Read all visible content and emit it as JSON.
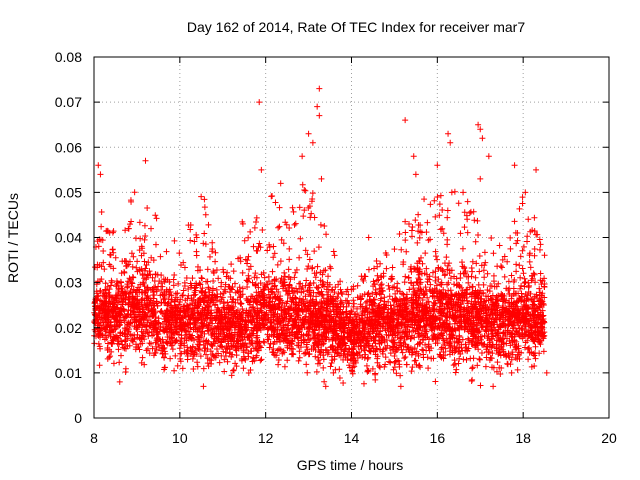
{
  "chart_data": {
    "type": "scatter",
    "title": "Day 162 of 2014, Rate Of TEC Index for receiver mar7",
    "xlabel": "GPS time / hours",
    "ylabel": "ROTI / TECUs",
    "xlim": [
      8,
      20
    ],
    "ylim": [
      0,
      0.08
    ],
    "grid": true,
    "marker": "+",
    "xticks": [
      8,
      10,
      12,
      14,
      16,
      18,
      20
    ],
    "xtick_labels": [
      "8",
      "10",
      "12",
      "14",
      "16",
      "18",
      "20"
    ],
    "yticks": [
      0,
      0.01,
      0.02,
      0.03,
      0.04,
      0.05,
      0.06,
      0.07,
      0.08
    ],
    "ytick_labels": [
      "0",
      "0.01",
      "0.02",
      "0.03",
      "0.04",
      "0.05",
      "0.06",
      "0.07",
      "0.08"
    ],
    "series_color": "#ff0000",
    "data_range": {
      "x_start": 8.0,
      "x_end": 18.5
    },
    "envelope": [
      {
        "x": 8.0,
        "median": 0.022,
        "low": 0.014,
        "high": 0.05
      },
      {
        "x": 8.5,
        "median": 0.022,
        "low": 0.01,
        "high": 0.042
      },
      {
        "x": 9.0,
        "median": 0.024,
        "low": 0.01,
        "high": 0.052
      },
      {
        "x": 9.5,
        "median": 0.022,
        "low": 0.01,
        "high": 0.045
      },
      {
        "x": 10.0,
        "median": 0.02,
        "low": 0.01,
        "high": 0.04
      },
      {
        "x": 10.5,
        "median": 0.022,
        "low": 0.008,
        "high": 0.052
      },
      {
        "x": 11.0,
        "median": 0.02,
        "low": 0.009,
        "high": 0.035
      },
      {
        "x": 11.5,
        "median": 0.02,
        "low": 0.008,
        "high": 0.045
      },
      {
        "x": 12.0,
        "median": 0.022,
        "low": 0.01,
        "high": 0.052
      },
      {
        "x": 12.5,
        "median": 0.021,
        "low": 0.009,
        "high": 0.045
      },
      {
        "x": 13.0,
        "median": 0.022,
        "low": 0.01,
        "high": 0.055
      },
      {
        "x": 13.5,
        "median": 0.021,
        "low": 0.008,
        "high": 0.04
      },
      {
        "x": 14.0,
        "median": 0.018,
        "low": 0.009,
        "high": 0.03
      },
      {
        "x": 14.5,
        "median": 0.02,
        "low": 0.008,
        "high": 0.035
      },
      {
        "x": 15.0,
        "median": 0.02,
        "low": 0.008,
        "high": 0.04
      },
      {
        "x": 15.5,
        "median": 0.022,
        "low": 0.009,
        "high": 0.048
      },
      {
        "x": 16.0,
        "median": 0.022,
        "low": 0.009,
        "high": 0.05
      },
      {
        "x": 16.5,
        "median": 0.022,
        "low": 0.009,
        "high": 0.052
      },
      {
        "x": 17.0,
        "median": 0.021,
        "low": 0.008,
        "high": 0.045
      },
      {
        "x": 17.5,
        "median": 0.02,
        "low": 0.009,
        "high": 0.038
      },
      {
        "x": 18.0,
        "median": 0.022,
        "low": 0.01,
        "high": 0.05
      },
      {
        "x": 18.5,
        "median": 0.022,
        "low": 0.01,
        "high": 0.042
      }
    ],
    "notable_points": [
      {
        "x": 11.85,
        "y": 0.07
      },
      {
        "x": 13.25,
        "y": 0.073
      },
      {
        "x": 13.2,
        "y": 0.069
      },
      {
        "x": 13.25,
        "y": 0.067
      },
      {
        "x": 13.1,
        "y": 0.061
      },
      {
        "x": 13.0,
        "y": 0.063
      },
      {
        "x": 12.85,
        "y": 0.058
      },
      {
        "x": 15.25,
        "y": 0.066
      },
      {
        "x": 15.45,
        "y": 0.058
      },
      {
        "x": 15.5,
        "y": 0.054
      },
      {
        "x": 16.25,
        "y": 0.063
      },
      {
        "x": 16.3,
        "y": 0.061
      },
      {
        "x": 16.0,
        "y": 0.056
      },
      {
        "x": 16.95,
        "y": 0.065
      },
      {
        "x": 17.0,
        "y": 0.064
      },
      {
        "x": 17.05,
        "y": 0.062
      },
      {
        "x": 17.0,
        "y": 0.053
      },
      {
        "x": 17.8,
        "y": 0.056
      },
      {
        "x": 17.2,
        "y": 0.058
      },
      {
        "x": 9.2,
        "y": 0.057
      },
      {
        "x": 8.1,
        "y": 0.056
      },
      {
        "x": 8.15,
        "y": 0.054
      },
      {
        "x": 11.9,
        "y": 0.055
      },
      {
        "x": 12.35,
        "y": 0.052
      },
      {
        "x": 13.3,
        "y": 0.053
      },
      {
        "x": 18.05,
        "y": 0.05
      },
      {
        "x": 18.3,
        "y": 0.055
      },
      {
        "x": 16.6,
        "y": 0.05
      },
      {
        "x": 14.4,
        "y": 0.04
      },
      {
        "x": 8.6,
        "y": 0.008
      },
      {
        "x": 13.4,
        "y": 0.007
      },
      {
        "x": 15.15,
        "y": 0.007
      },
      {
        "x": 10.55,
        "y": 0.007
      },
      {
        "x": 17.3,
        "y": 0.007
      },
      {
        "x": 18.55,
        "y": 0.01
      }
    ]
  }
}
